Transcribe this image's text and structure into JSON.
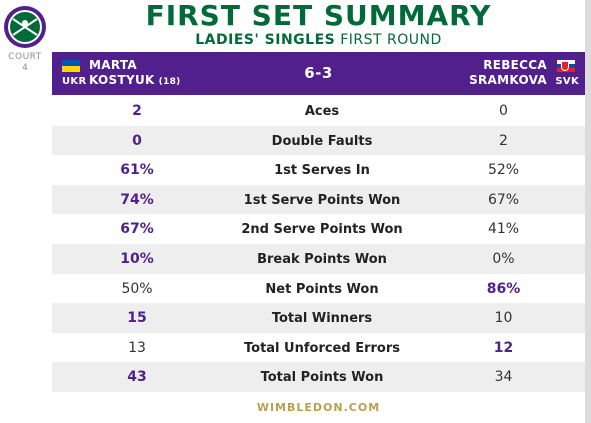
{
  "sidebar": {
    "court_label": "COURT",
    "court_number": "4"
  },
  "title": "FIRST SET SUMMARY",
  "subtitle": {
    "bold": "LADIES' SINGLES",
    "regular": "FIRST ROUND"
  },
  "match": {
    "player1": {
      "first": "MARTA",
      "last": "KOSTYUK",
      "seed": "(18)",
      "country": "UKR"
    },
    "player2": {
      "first": "REBECCA",
      "last": "SRAMKOVA",
      "country": "SVK"
    },
    "score": "6-3"
  },
  "stats": [
    {
      "label": "Aces",
      "p1": "2",
      "p2": "0",
      "winner": "p1"
    },
    {
      "label": "Double Faults",
      "p1": "0",
      "p2": "2",
      "winner": "p1"
    },
    {
      "label": "1st Serves In",
      "p1": "61%",
      "p2": "52%",
      "winner": "p1"
    },
    {
      "label": "1st Serve Points Won",
      "p1": "74%",
      "p2": "67%",
      "winner": "p1"
    },
    {
      "label": "2nd Serve Points Won",
      "p1": "67%",
      "p2": "41%",
      "winner": "p1"
    },
    {
      "label": "Break Points Won",
      "p1": "10%",
      "p2": "0%",
      "winner": "p1"
    },
    {
      "label": "Net Points Won",
      "p1": "50%",
      "p2": "86%",
      "winner": "p2"
    },
    {
      "label": "Total Winners",
      "p1": "15",
      "p2": "10",
      "winner": "p1"
    },
    {
      "label": "Total Unforced Errors",
      "p1": "13",
      "p2": "12",
      "winner": "p2"
    },
    {
      "label": "Total Points Won",
      "p1": "43",
      "p2": "34",
      "winner": "p1"
    }
  ],
  "footer": "WIMBLEDON.COM",
  "colors": {
    "purple": "#52208c",
    "green": "#006a38",
    "gold": "#b8a14b"
  }
}
